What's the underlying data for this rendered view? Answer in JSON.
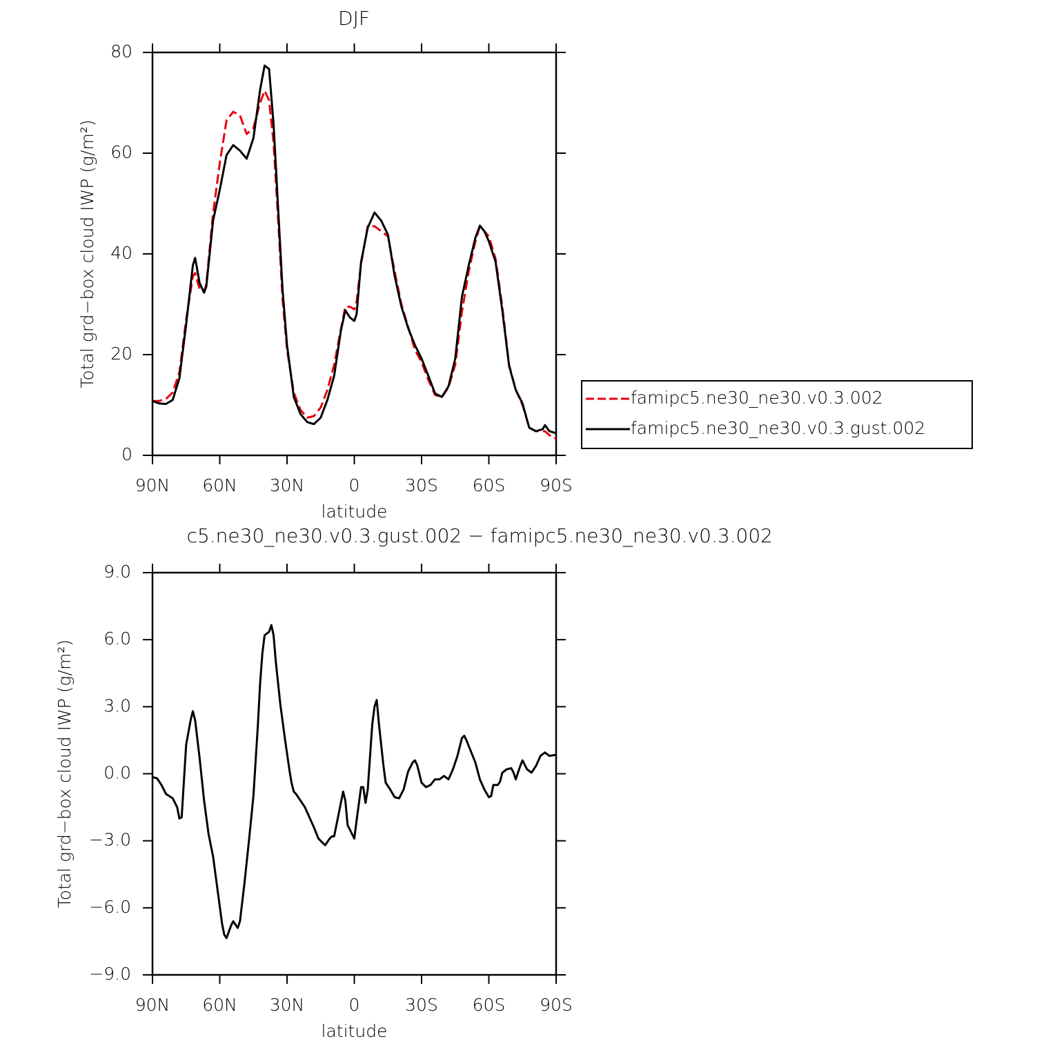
{
  "chart_data": [
    {
      "type": "line",
      "title": "DJF",
      "xlabel": "latitude",
      "ylabel": "Total grd−box cloud IWP (g/m²)",
      "xlim": [
        90,
        -90
      ],
      "xticks": [
        {
          "value": 90,
          "label": "90N"
        },
        {
          "value": 60,
          "label": "60N"
        },
        {
          "value": 30,
          "label": "30N"
        },
        0,
        {
          "value": -30,
          "label": "30S"
        },
        {
          "value": -60,
          "label": "60S"
        },
        {
          "value": -90,
          "label": "90S"
        }
      ],
      "ylim": [
        0,
        80
      ],
      "yticks": [
        0,
        20,
        40,
        60,
        80
      ],
      "legend": "right",
      "x": [
        90,
        87,
        84,
        81,
        78,
        75,
        72,
        71,
        69,
        67,
        66,
        63,
        60,
        57,
        54,
        51,
        48,
        45,
        42,
        40,
        38,
        36,
        34,
        32,
        30,
        27,
        24,
        21,
        18,
        15,
        12,
        9,
        6,
        4,
        2,
        0,
        -1,
        -3,
        -6,
        -9,
        -12,
        -15,
        -18,
        -21,
        -24,
        -27,
        -30,
        -33,
        -36,
        -39,
        -42,
        -45,
        -48,
        -51,
        -54,
        -56,
        -58,
        -60,
        -63,
        -66,
        -69,
        -72,
        -75,
        -78,
        -81,
        -84,
        -85,
        -87,
        -90
      ],
      "series": [
        {
          "name": "famipc5.ne30_ne30.v0.3.002",
          "color": "#e8000b",
          "dashed": true,
          "values": [
            10.8,
            10.8,
            11.2,
            12.5,
            16.5,
            27,
            35.5,
            36.2,
            33,
            32.5,
            34,
            48,
            58,
            66.5,
            68.2,
            67.5,
            63.8,
            65,
            70,
            72.4,
            70.5,
            62,
            47,
            31,
            21,
            12.5,
            9,
            7.5,
            7.8,
            9.5,
            13,
            18,
            25,
            29.5,
            29.5,
            29,
            30.5,
            38,
            45.5,
            45.5,
            44.5,
            43.5,
            36.5,
            30,
            25.5,
            21,
            18.5,
            15,
            12,
            11.5,
            13.5,
            18,
            28.5,
            36.5,
            42.5,
            45.5,
            44.5,
            43.5,
            39,
            29.5,
            18,
            13,
            10,
            5.5,
            4.8,
            4.8,
            4.8,
            4,
            3.3
          ]
        },
        {
          "name": "famipc5.ne30_ne30.v0.3.gust.002",
          "color": "#000000",
          "dashed": false,
          "values": [
            10.8,
            10.3,
            10.2,
            11,
            15.3,
            26,
            37.7,
            39.2,
            34.2,
            32.3,
            33.5,
            46.6,
            52.7,
            59.6,
            61.6,
            60.5,
            58.9,
            63,
            72.6,
            77.4,
            76.7,
            65.8,
            49.3,
            32.9,
            21.9,
            11.6,
            8.2,
            6.6,
            6.2,
            7.5,
            11,
            15.8,
            24.7,
            28.8,
            27.4,
            26.7,
            28,
            38.4,
            45.2,
            48.2,
            46.6,
            43.8,
            35.6,
            29.5,
            25.3,
            21.9,
            19.2,
            15.8,
            12.3,
            11.6,
            13.7,
            19.2,
            31.5,
            37.7,
            43.2,
            45.6,
            44.5,
            42.5,
            38.4,
            28.8,
            17.8,
            13,
            10.3,
            5.5,
            4.8,
            5.2,
            6,
            4.8,
            4.4
          ]
        }
      ]
    },
    {
      "type": "line",
      "title": "c5.ne30_ne30.v0.3.gust.002 − famipc5.ne30_ne30.v0.3.002",
      "xlabel": "latitude",
      "ylabel": "Total grd−box cloud IWP (g/m²)",
      "xlim": [
        90,
        -90
      ],
      "xticks": [
        {
          "value": 90,
          "label": "90N"
        },
        {
          "value": 60,
          "label": "60N"
        },
        {
          "value": 30,
          "label": "30N"
        },
        0,
        {
          "value": -30,
          "label": "30S"
        },
        {
          "value": -60,
          "label": "60S"
        },
        {
          "value": -90,
          "label": "90S"
        }
      ],
      "ylim": [
        -9,
        9
      ],
      "yticks": [
        {
          "value": -9,
          "label": "−9.0"
        },
        {
          "value": -6,
          "label": "−6.0"
        },
        {
          "value": -3,
          "label": "−3.0"
        },
        {
          "value": 0,
          "label": "0.0"
        },
        {
          "value": 3,
          "label": "3.0"
        },
        {
          "value": 6,
          "label": "6.0"
        },
        {
          "value": 9,
          "label": "9.0"
        }
      ],
      "x": [
        90,
        88,
        86,
        84,
        81,
        79,
        78,
        77,
        75,
        73,
        72,
        71,
        69,
        67,
        65,
        63,
        61,
        59,
        58,
        57,
        55,
        54,
        52,
        51,
        49,
        47,
        45,
        43,
        42,
        41,
        40,
        38,
        37,
        36,
        35,
        33,
        31,
        29,
        28,
        27,
        26,
        24,
        22,
        20,
        18,
        16,
        14,
        13,
        11,
        10,
        9,
        7,
        5,
        4,
        3,
        1,
        0,
        -1,
        -3,
        -4,
        -5,
        -6,
        -8,
        -9,
        -10,
        -11,
        -13,
        -14,
        -16,
        -18,
        -20,
        -22,
        -24,
        -26,
        -27,
        -28,
        -30,
        -32,
        -34,
        -36,
        -38,
        -40,
        -42,
        -44,
        -46,
        -48,
        -49,
        -50,
        -52,
        -54,
        -56,
        -58,
        -60,
        -61,
        -62,
        -64,
        -65,
        -66,
        -68,
        -70,
        -71,
        -72,
        -74,
        -75,
        -77,
        -79,
        -81,
        -83,
        -85,
        -87,
        -90
      ],
      "series": [
        {
          "color": "#000000",
          "dashed": false,
          "values": [
            -0.15,
            -0.2,
            -0.5,
            -0.9,
            -1.1,
            -1.5,
            -2.0,
            -1.95,
            1.3,
            2.4,
            2.8,
            2.4,
            0.7,
            -1.2,
            -2.7,
            -3.7,
            -5.2,
            -6.7,
            -7.2,
            -7.35,
            -6.8,
            -6.6,
            -6.9,
            -6.6,
            -4.9,
            -3.0,
            -1.0,
            2.2,
            4.05,
            5.4,
            6.2,
            6.35,
            6.65,
            6.2,
            5.0,
            3.1,
            1.6,
            0.2,
            -0.4,
            -0.8,
            -0.9,
            -1.2,
            -1.5,
            -1.95,
            -2.4,
            -2.9,
            -3.1,
            -3.2,
            -2.9,
            -2.8,
            -2.8,
            -1.8,
            -0.8,
            -1.2,
            -2.3,
            -2.7,
            -2.9,
            -2.1,
            -0.6,
            -0.6,
            -1.3,
            -0.7,
            2.2,
            3.0,
            3.3,
            2.2,
            0.35,
            -0.4,
            -0.7,
            -1.05,
            -1.1,
            -0.7,
            0.1,
            0.5,
            0.6,
            0.4,
            -0.4,
            -0.6,
            -0.5,
            -0.25,
            -0.25,
            -0.1,
            -0.25,
            0.2,
            0.8,
            1.6,
            1.7,
            1.5,
            1.0,
            0.5,
            -0.25,
            -0.7,
            -1.05,
            -1.0,
            -0.5,
            -0.5,
            -0.35,
            0.05,
            0.2,
            0.25,
            0.05,
            -0.25,
            0.35,
            0.6,
            0.2,
            0.05,
            0.35,
            0.8,
            0.95,
            0.8,
            0.85
          ]
        }
      ]
    }
  ]
}
